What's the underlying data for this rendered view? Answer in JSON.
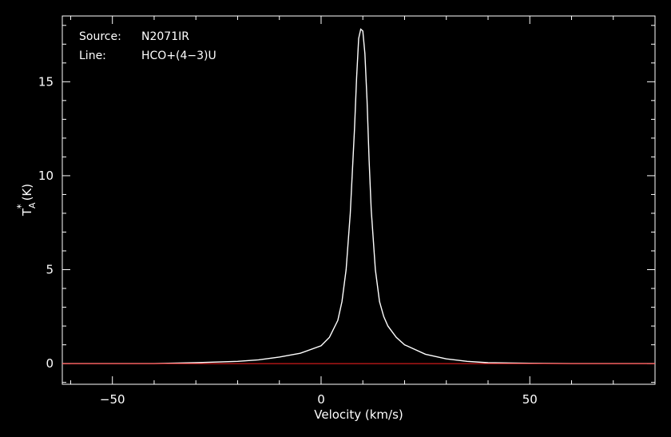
{
  "chart_data": {
    "type": "line",
    "title": "",
    "xlabel": "Velocity (km/s)",
    "ylabel": {
      "base": "T",
      "sup": "*",
      "sub": "A",
      "unit": "(K)"
    },
    "xlim": [
      -62,
      80
    ],
    "ylim": [
      -1.1,
      18.5
    ],
    "xticks": [
      -50,
      0,
      50
    ],
    "xtick_labels": [
      "−50",
      "0",
      "50"
    ],
    "yticks": [
      0,
      5,
      10,
      15
    ],
    "ytick_labels": [
      "0",
      "5",
      "10",
      "15"
    ],
    "grid": false,
    "annotations": {
      "source_label": "Source:",
      "source_value": "N2071IR",
      "line_label": "Line:",
      "line_value": "HCO+(4−3)U"
    },
    "series": [
      {
        "color": "#ffffff",
        "x": [
          -62,
          -50,
          -40,
          -30,
          -20,
          -15,
          -10,
          -5,
          0,
          2,
          4,
          5,
          6,
          7,
          8,
          8.5,
          9,
          9.5,
          10,
          10.5,
          11,
          11.5,
          12,
          13,
          14,
          15,
          16,
          18,
          20,
          25,
          30,
          35,
          40,
          50,
          60,
          70,
          80
        ],
        "y": [
          0,
          0,
          0,
          0.05,
          0.12,
          0.2,
          0.35,
          0.55,
          0.95,
          1.4,
          2.3,
          3.3,
          5.0,
          8.0,
          12.5,
          15.2,
          17.3,
          17.8,
          17.7,
          16.5,
          14.0,
          10.8,
          8.2,
          5.0,
          3.3,
          2.5,
          2.0,
          1.4,
          1.0,
          0.5,
          0.25,
          0.12,
          0.05,
          0.02,
          0,
          0,
          0
        ]
      },
      {
        "color": "#ff2020",
        "x": [
          -62,
          80
        ],
        "y": [
          0,
          0
        ]
      }
    ]
  }
}
